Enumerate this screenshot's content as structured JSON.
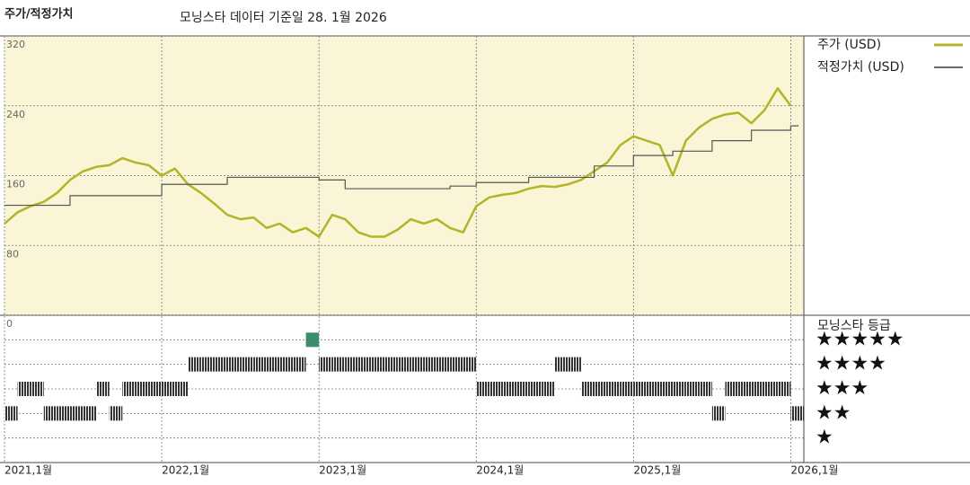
{
  "chart_data": {
    "type": "line",
    "title": "주가/적정가치",
    "subtitle": "모닝스타 데이터 기준일 28. 1월 2026",
    "x": [
      "2021-01",
      "2021-02",
      "2021-03",
      "2021-04",
      "2021-05",
      "2021-06",
      "2021-07",
      "2021-08",
      "2021-09",
      "2021-10",
      "2021-11",
      "2021-12",
      "2022-01",
      "2022-02",
      "2022-03",
      "2022-04",
      "2022-05",
      "2022-06",
      "2022-07",
      "2022-08",
      "2022-09",
      "2022-10",
      "2022-11",
      "2022-12",
      "2023-01",
      "2023-02",
      "2023-03",
      "2023-04",
      "2023-05",
      "2023-06",
      "2023-07",
      "2023-08",
      "2023-09",
      "2023-10",
      "2023-11",
      "2023-12",
      "2024-01",
      "2024-02",
      "2024-03",
      "2024-04",
      "2024-05",
      "2024-06",
      "2024-07",
      "2024-08",
      "2024-09",
      "2024-10",
      "2024-11",
      "2024-12",
      "2025-01",
      "2025-02",
      "2025-03",
      "2025-04",
      "2025-05",
      "2025-06",
      "2025-07",
      "2025-08",
      "2025-09",
      "2025-10",
      "2025-11",
      "2025-12",
      "2026-01"
    ],
    "series": [
      {
        "name": "주가 (USD)",
        "color": "#b3b428",
        "width": 2.5,
        "step": false,
        "values": [
          105,
          118,
          125,
          130,
          140,
          155,
          165,
          170,
          172,
          180,
          175,
          172,
          160,
          168,
          150,
          140,
          128,
          115,
          110,
          112,
          100,
          105,
          95,
          100,
          90,
          115,
          110,
          95,
          90,
          90,
          98,
          110,
          105,
          110,
          100,
          95,
          125,
          135,
          138,
          140,
          145,
          148,
          147,
          150,
          155,
          165,
          175,
          195,
          205,
          200,
          195,
          160,
          200,
          215,
          225,
          230,
          232,
          220,
          235,
          260,
          240
        ]
      },
      {
        "name": "적정가치 (USD)",
        "color": "#555555",
        "width": 1.2,
        "step": true,
        "values": [
          126,
          126,
          126,
          126,
          126,
          137,
          137,
          137,
          137,
          137,
          137,
          137,
          150,
          150,
          150,
          150,
          150,
          158,
          158,
          158,
          158,
          158,
          158,
          158,
          155,
          155,
          145,
          145,
          145,
          145,
          145,
          145,
          145,
          145,
          148,
          148,
          152,
          152,
          152,
          152,
          158,
          158,
          158,
          158,
          158,
          171,
          171,
          171,
          183,
          183,
          183,
          188,
          188,
          188,
          200,
          200,
          200,
          212,
          212,
          212,
          217
        ]
      }
    ],
    "xlim": [
      "2021-01",
      "2026-02"
    ],
    "xticks": [
      {
        "value": "2021-01",
        "label": "2021,1월"
      },
      {
        "value": "2022-01",
        "label": "2022,1월"
      },
      {
        "value": "2023-01",
        "label": "2023,1월"
      },
      {
        "value": "2024-01",
        "label": "2024,1월"
      },
      {
        "value": "2025-01",
        "label": "2025,1월"
      },
      {
        "value": "2026-01",
        "label": "2026,1월"
      }
    ],
    "ylim": [
      0,
      320
    ],
    "yticks": [
      0,
      80,
      160,
      240,
      320
    ],
    "grid": true,
    "rating_title": "모닝스타 등급",
    "ratings": [
      2,
      3,
      3,
      2,
      2,
      2,
      2,
      3,
      2,
      3,
      3,
      3,
      3,
      3,
      4,
      4,
      4,
      4,
      4,
      4,
      4,
      4,
      4,
      5,
      4,
      4,
      4,
      4,
      4,
      4,
      4,
      4,
      4,
      4,
      4,
      4,
      3,
      3,
      3,
      3,
      3,
      3,
      4,
      4,
      3,
      3,
      3,
      3,
      3,
      3,
      3,
      3,
      3,
      3,
      2,
      3,
      3,
      3,
      3,
      3,
      2
    ],
    "rating_lim": [
      0,
      6
    ],
    "rating_ticks": [
      {
        "value": 5,
        "label": "★★★★★"
      },
      {
        "value": 4,
        "label": "★★★★"
      },
      {
        "value": 3,
        "label": "★★★"
      },
      {
        "value": 2,
        "label": "★★"
      },
      {
        "value": 1,
        "label": "★"
      }
    ],
    "rating_colors": {
      "default": "#333333",
      "top": "#3d8c6e"
    }
  }
}
